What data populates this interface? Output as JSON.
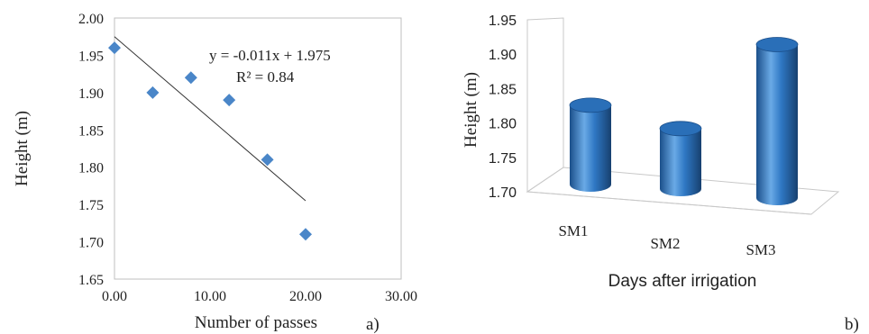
{
  "chart_data": [
    {
      "type": "scatter",
      "panel_label": "a)",
      "xlabel": "Number of passes",
      "ylabel": "Height (m)",
      "xlim": [
        0,
        30
      ],
      "ylim": [
        1.65,
        2.0
      ],
      "x_ticks": [
        0,
        10,
        20,
        30
      ],
      "x_tick_labels": [
        "0.00",
        "10.00",
        "20.00",
        "30.00"
      ],
      "y_ticks": [
        1.65,
        1.7,
        1.75,
        1.8,
        1.85,
        1.9,
        1.95,
        2.0
      ],
      "y_tick_labels": [
        "1.65",
        "1.70",
        "1.75",
        "1.80",
        "1.85",
        "1.90",
        "1.95",
        "2.00"
      ],
      "points": [
        {
          "x": 0,
          "y": 1.96
        },
        {
          "x": 4,
          "y": 1.9
        },
        {
          "x": 8,
          "y": 1.92
        },
        {
          "x": 12,
          "y": 1.89
        },
        {
          "x": 16,
          "y": 1.81
        },
        {
          "x": 20,
          "y": 1.71
        }
      ],
      "trendline": {
        "slope": -0.011,
        "intercept": 1.975,
        "x_range": [
          0,
          20
        ]
      },
      "equation": "y = -0.011x + 1.975",
      "r2_label": "R² = 0.84",
      "grid": false,
      "colors": {
        "marker": "#4a86c8",
        "line": "#333333"
      }
    },
    {
      "type": "bar",
      "style": "3d-cylinder",
      "panel_label": "b)",
      "xlabel": "Days after irrigation",
      "ylabel": "Height (m)",
      "categories": [
        "SM1",
        "SM2",
        "SM3"
      ],
      "values": [
        1.83,
        1.8,
        1.93
      ],
      "ylim": [
        1.7,
        1.95
      ],
      "y_ticks": [
        1.7,
        1.75,
        1.8,
        1.85,
        1.9,
        1.95
      ],
      "y_tick_labels": [
        "1.70",
        "1.75",
        "1.80",
        "1.85",
        "1.90",
        "1.95"
      ],
      "grid": false,
      "colors": {
        "bar": "#2f78c4",
        "bar_light": "#6aaae6",
        "bar_dark": "#1b4f8a"
      }
    }
  ]
}
